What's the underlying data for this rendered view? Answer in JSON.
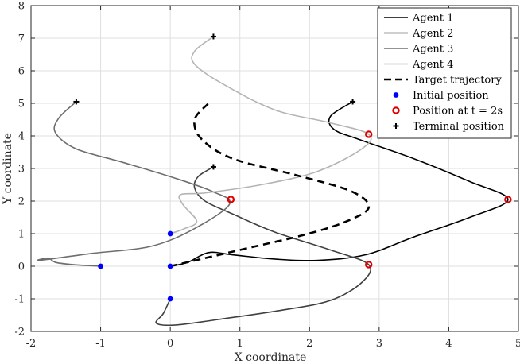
{
  "chart_data": {
    "type": "line",
    "title": "",
    "xlabel": "X coordinate",
    "ylabel": "Y coordinate",
    "xlim": [
      -2,
      5
    ],
    "ylim": [
      -2,
      8
    ],
    "xticks": [
      -2,
      -1,
      0,
      1,
      2,
      3,
      4,
      5
    ],
    "yticks": [
      -2,
      -1,
      0,
      1,
      2,
      3,
      4,
      5,
      6,
      7,
      8
    ],
    "grid": true,
    "legend_position": "top-right",
    "series": [
      {
        "name": "Agent 1",
        "color": "#000000",
        "style": "solid",
        "points": [
          [
            0,
            0
          ],
          [
            0.25,
            0.12
          ],
          [
            0.55,
            0.42
          ],
          [
            0.9,
            0.35
          ],
          [
            1.5,
            0.22
          ],
          [
            2.1,
            0.18
          ],
          [
            2.8,
            0.35
          ],
          [
            3.5,
            0.9
          ],
          [
            4.3,
            1.5
          ],
          [
            4.85,
            2.05
          ],
          [
            4.3,
            2.6
          ],
          [
            3.5,
            3.3
          ],
          [
            2.7,
            3.9
          ],
          [
            2.35,
            4.2
          ],
          [
            2.3,
            4.6
          ],
          [
            2.62,
            5.05
          ]
        ]
      },
      {
        "name": "Agent 2",
        "color": "#404040",
        "style": "solid",
        "points": [
          [
            0,
            -1
          ],
          [
            -0.1,
            -1.45
          ],
          [
            -0.2,
            -1.75
          ],
          [
            0.1,
            -1.8
          ],
          [
            0.8,
            -1.6
          ],
          [
            1.6,
            -1.35
          ],
          [
            2.3,
            -1.05
          ],
          [
            2.75,
            -0.5
          ],
          [
            2.85,
            0.05
          ],
          [
            2.3,
            0.5
          ],
          [
            1.5,
            1.05
          ],
          [
            0.9,
            1.6
          ],
          [
            0.5,
            2.0
          ],
          [
            0.35,
            2.4
          ],
          [
            0.4,
            2.75
          ],
          [
            0.62,
            3.05
          ]
        ]
      },
      {
        "name": "Agent 3",
        "color": "#6e6e6e",
        "style": "solid",
        "points": [
          [
            -1,
            0
          ],
          [
            -1.4,
            0.05
          ],
          [
            -1.65,
            0.12
          ],
          [
            -1.75,
            0.25
          ],
          [
            -1.88,
            0.18
          ],
          [
            -1.1,
            0.4
          ],
          [
            -0.3,
            0.6
          ],
          [
            0.3,
            1.1
          ],
          [
            0.85,
            1.9
          ],
          [
            0.6,
            2.3
          ],
          [
            0.0,
            2.75
          ],
          [
            -0.7,
            3.2
          ],
          [
            -1.35,
            3.6
          ],
          [
            -1.65,
            4.1
          ],
          [
            -1.6,
            4.55
          ],
          [
            -1.35,
            5.05
          ]
        ]
      },
      {
        "name": "Agent 4",
        "color": "#b4b4b4",
        "style": "solid",
        "points": [
          [
            0,
            1
          ],
          [
            0.2,
            1.15
          ],
          [
            0.38,
            1.38
          ],
          [
            0.18,
            1.9
          ],
          [
            0.15,
            2.2
          ],
          [
            0.5,
            2.25
          ],
          [
            1.3,
            2.5
          ],
          [
            2.1,
            2.9
          ],
          [
            2.75,
            3.6
          ],
          [
            2.85,
            4.05
          ],
          [
            2.3,
            4.4
          ],
          [
            1.5,
            4.8
          ],
          [
            0.75,
            5.6
          ],
          [
            0.35,
            6.2
          ],
          [
            0.35,
            6.6
          ],
          [
            0.62,
            7.05
          ]
        ]
      },
      {
        "name": "Target trajectory",
        "color": "#000000",
        "style": "dashed",
        "points": [
          [
            0,
            0
          ],
          [
            0.5,
            0.25
          ],
          [
            1.2,
            0.6
          ],
          [
            1.9,
            0.95
          ],
          [
            2.5,
            1.35
          ],
          [
            2.85,
            1.8
          ],
          [
            2.6,
            2.3
          ],
          [
            1.8,
            2.8
          ],
          [
            0.9,
            3.3
          ],
          [
            0.45,
            3.9
          ],
          [
            0.35,
            4.5
          ],
          [
            0.55,
            5.0
          ]
        ]
      }
    ],
    "initial_position": {
      "name": "Initial position",
      "color": "#0000ff",
      "marker": "dot",
      "points": [
        [
          0,
          0
        ],
        [
          0,
          -1
        ],
        [
          -1,
          0
        ],
        [
          0,
          1
        ]
      ]
    },
    "position_at_t2": {
      "name": "Position at t = 2s",
      "color": "#e00000",
      "marker": "circle",
      "points": [
        [
          4.85,
          2.05
        ],
        [
          2.85,
          0.05
        ],
        [
          0.87,
          2.05
        ],
        [
          2.85,
          4.05
        ]
      ]
    },
    "terminal_position": {
      "name": "Terminal position",
      "color": "#000000",
      "marker": "plus",
      "points": [
        [
          2.62,
          5.05
        ],
        [
          0.62,
          3.05
        ],
        [
          -1.35,
          5.05
        ],
        [
          0.62,
          7.05
        ]
      ]
    },
    "legend": [
      "Agent 1",
      "Agent 2",
      "Agent 3",
      "Agent 4",
      "Target trajectory",
      "Initial position",
      "Position at t = 2s",
      "Terminal position"
    ]
  }
}
